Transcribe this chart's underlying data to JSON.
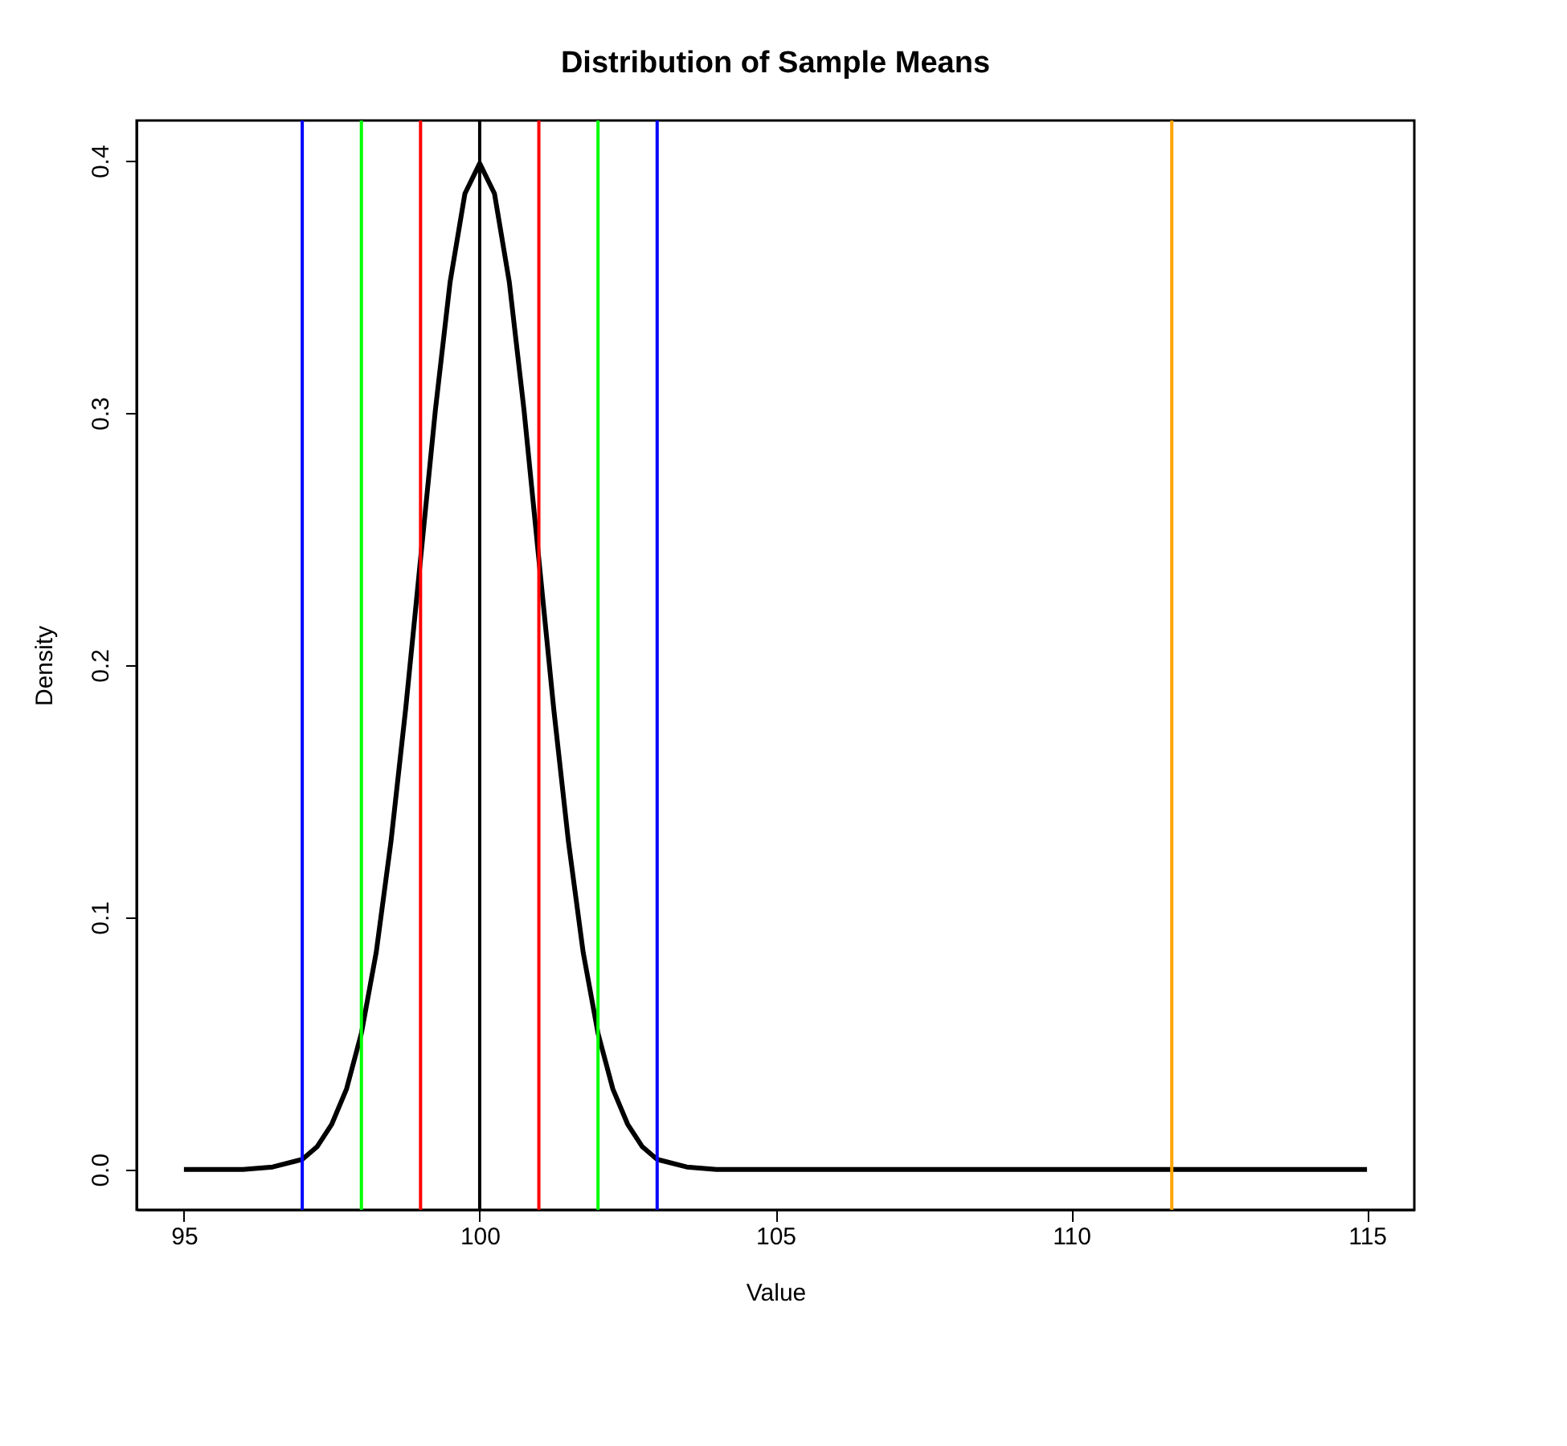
{
  "chart_data": {
    "type": "line",
    "title": "Distribution of Sample Means",
    "xlabel": "Value",
    "ylabel": "Density",
    "x": [
      95,
      96,
      96.5,
      97,
      97.25,
      97.5,
      97.75,
      98,
      98.25,
      98.5,
      98.75,
      99,
      99.25,
      99.5,
      99.75,
      100,
      100.25,
      100.5,
      100.75,
      101,
      101.25,
      101.5,
      101.75,
      102,
      102.25,
      102.5,
      102.75,
      103,
      103.5,
      104,
      105,
      110,
      115
    ],
    "series": [
      {
        "color": "#000000",
        "values": [
          0.0,
          0.0,
          0.001,
          0.004,
          0.009,
          0.018,
          0.032,
          0.054,
          0.086,
          0.13,
          0.183,
          0.242,
          0.301,
          0.352,
          0.387,
          0.399,
          0.387,
          0.352,
          0.301,
          0.242,
          0.183,
          0.13,
          0.086,
          0.054,
          0.032,
          0.018,
          0.009,
          0.004,
          0.001,
          0.0,
          0.0,
          0.0,
          0.0
        ]
      }
    ],
    "xlim": [
      94.2,
      115.8
    ],
    "xticks": [
      95,
      100,
      105,
      110,
      115
    ],
    "ylim": [
      -0.016,
      0.416
    ],
    "yticks": [
      {
        "value": 0,
        "label": "0.0"
      },
      0.1,
      0.2,
      0.3,
      0.4
    ],
    "ref_lines": [
      {
        "axis": "x",
        "value": 97,
        "color": "#0000ff"
      },
      {
        "axis": "x",
        "value": 103,
        "color": "#0000ff"
      },
      {
        "axis": "x",
        "value": 98,
        "color": "#00ff00"
      },
      {
        "axis": "x",
        "value": 102,
        "color": "#00ff00"
      },
      {
        "axis": "x",
        "value": 99,
        "color": "#ff0000"
      },
      {
        "axis": "x",
        "value": 101,
        "color": "#ff0000"
      },
      {
        "axis": "x",
        "value": 100,
        "color": "#000000"
      },
      {
        "axis": "x",
        "value": 111.7,
        "color": "#ffa500"
      }
    ],
    "grid": false,
    "line_style": "solid",
    "marker": "none"
  }
}
